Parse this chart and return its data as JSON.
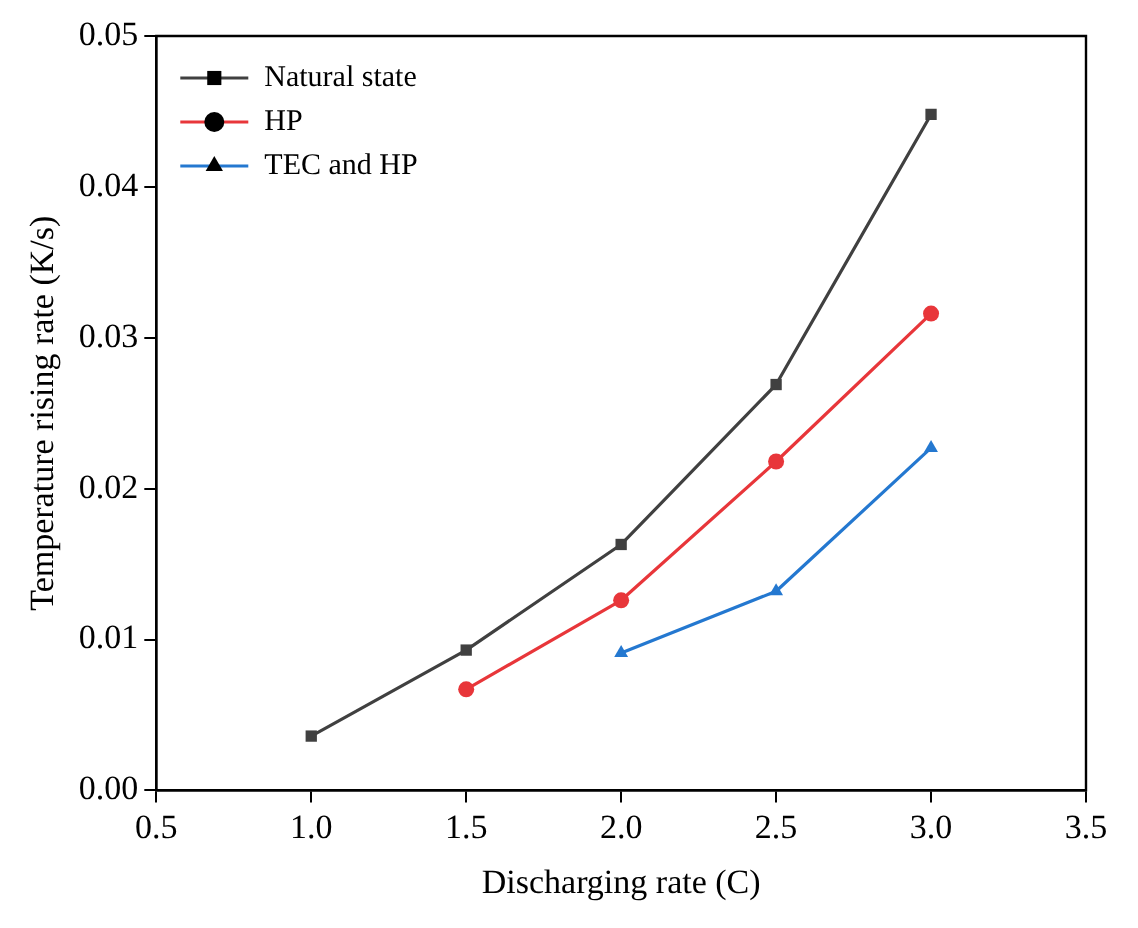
{
  "chart_data": {
    "type": "line",
    "xlabel": "Discharging rate (C)",
    "ylabel": "Temperature rising rate (K/s)",
    "xlim": [
      0.5,
      3.5
    ],
    "xticks": [
      {
        "value": 0.5,
        "label": "0.5"
      },
      {
        "value": 1,
        "label": "1.0"
      },
      {
        "value": 1.5,
        "label": "1.5"
      },
      {
        "value": 2,
        "label": "2.0"
      },
      {
        "value": 2.5,
        "label": "2.5"
      },
      {
        "value": 3,
        "label": "3.0"
      },
      {
        "value": 3.5,
        "label": "3.5"
      }
    ],
    "ylim": [
      0,
      0.05
    ],
    "yticks": [
      {
        "value": 0,
        "label": "0.00"
      },
      {
        "value": 0.01,
        "label": "0.01"
      },
      {
        "value": 0.02,
        "label": "0.02"
      },
      {
        "value": 0.03,
        "label": "0.03"
      },
      {
        "value": 0.04,
        "label": "0.04"
      },
      {
        "value": 0.05,
        "label": "0.05"
      }
    ],
    "grid": false,
    "legend": "top left",
    "line_style": "solid",
    "series": [
      {
        "name": "Natural state",
        "color": "#404040",
        "marker": "square",
        "x": [
          1,
          1.5,
          2,
          2.5,
          3
        ],
        "values": [
          0.0036,
          0.0093,
          0.0163,
          0.0269,
          0.0448
        ]
      },
      {
        "name": "HP",
        "color": "#e8363a",
        "marker": "circle",
        "x": [
          1.5,
          2,
          2.5,
          3
        ],
        "values": [
          0.0067,
          0.0126,
          0.0218,
          0.0316
        ]
      },
      {
        "name": "TEC and HP",
        "color": "#2478d0",
        "marker": "triangle",
        "x": [
          2,
          2.5,
          3
        ],
        "values": [
          0.0091,
          0.0132,
          0.0227
        ]
      }
    ]
  }
}
